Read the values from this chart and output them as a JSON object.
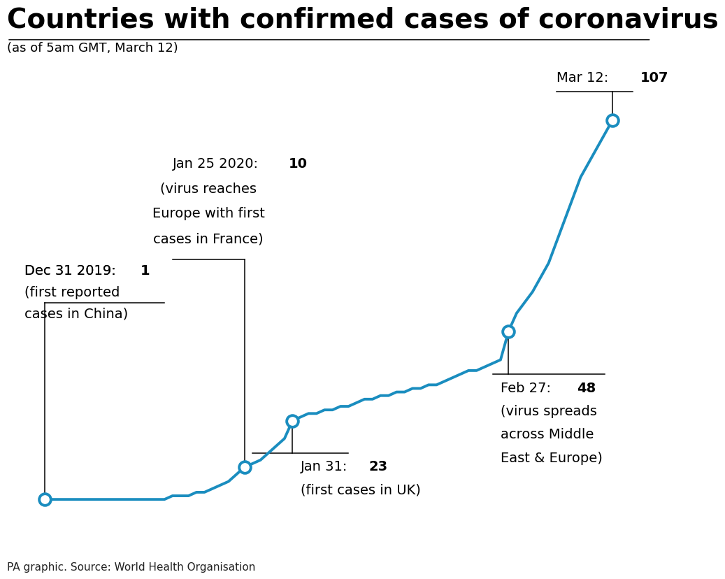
{
  "title": "Countries with confirmed cases of coronavirus",
  "subtitle": "(as of 5am GMT, March 12)",
  "source": "PA graphic. Source: World Health Organisation",
  "line_color": "#1a8dbf",
  "background_color": "#ffffff",
  "ylim": [
    -5,
    120
  ],
  "xlim": [
    -3,
    75
  ],
  "x_vals": [
    0,
    1,
    2,
    3,
    4,
    5,
    6,
    7,
    8,
    9,
    10,
    11,
    12,
    13,
    14,
    15,
    16,
    17,
    18,
    19,
    20,
    21,
    22,
    23,
    24,
    25,
    26,
    27,
    28,
    29,
    30,
    31,
    32,
    33,
    34,
    35,
    36,
    37,
    38,
    39,
    40,
    41,
    42,
    43,
    44,
    45,
    46,
    47,
    48,
    49,
    50,
    51,
    52,
    53,
    54,
    55,
    56,
    57,
    58,
    59,
    60,
    61,
    62,
    63,
    64,
    65,
    66,
    67,
    68,
    69,
    70,
    71
  ],
  "y_vals": [
    1,
    1,
    1,
    1,
    1,
    1,
    1,
    1,
    1,
    1,
    1,
    1,
    1,
    1,
    1,
    1,
    2,
    2,
    2,
    3,
    3,
    4,
    5,
    6,
    8,
    10,
    11,
    12,
    14,
    16,
    18,
    23,
    24,
    25,
    25,
    26,
    26,
    27,
    27,
    28,
    29,
    29,
    30,
    30,
    31,
    31,
    32,
    32,
    33,
    33,
    34,
    35,
    36,
    37,
    37,
    38,
    39,
    40,
    48,
    53,
    56,
    59,
    63,
    67,
    73,
    79,
    85,
    91,
    95,
    99,
    103,
    107
  ],
  "key_points": [
    [
      0,
      1
    ],
    [
      25,
      10
    ],
    [
      31,
      23
    ],
    [
      58,
      48
    ],
    [
      71,
      107
    ]
  ],
  "ann_fontsize": 14
}
